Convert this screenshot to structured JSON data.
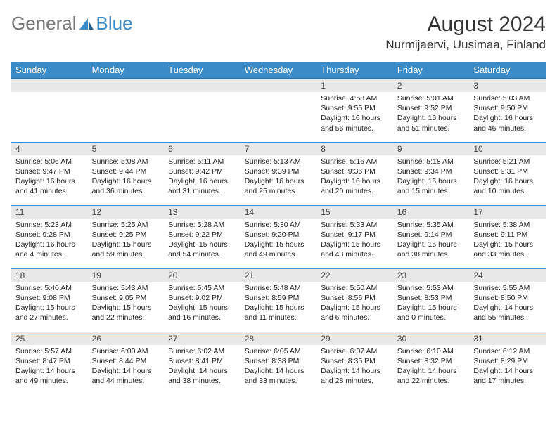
{
  "brand": {
    "part1": "General",
    "part2": "Blue"
  },
  "title": "August 2024",
  "location": "Nurmijaervi, Uusimaa, Finland",
  "colors": {
    "header_bg": "#3b8bc9",
    "header_border": "#2f6fa0",
    "daynum_bg": "#e8e8e8",
    "cell_border": "#3b8bc9",
    "text": "#222222",
    "background": "#ffffff"
  },
  "weekdays": [
    "Sunday",
    "Monday",
    "Tuesday",
    "Wednesday",
    "Thursday",
    "Friday",
    "Saturday"
  ],
  "weeks": [
    [
      {
        "empty": true
      },
      {
        "empty": true
      },
      {
        "empty": true
      },
      {
        "empty": true
      },
      {
        "day": "1",
        "sunrise": "4:58 AM",
        "sunset": "9:55 PM",
        "daylight": "16 hours and 56 minutes."
      },
      {
        "day": "2",
        "sunrise": "5:01 AM",
        "sunset": "9:52 PM",
        "daylight": "16 hours and 51 minutes."
      },
      {
        "day": "3",
        "sunrise": "5:03 AM",
        "sunset": "9:50 PM",
        "daylight": "16 hours and 46 minutes."
      }
    ],
    [
      {
        "day": "4",
        "sunrise": "5:06 AM",
        "sunset": "9:47 PM",
        "daylight": "16 hours and 41 minutes."
      },
      {
        "day": "5",
        "sunrise": "5:08 AM",
        "sunset": "9:44 PM",
        "daylight": "16 hours and 36 minutes."
      },
      {
        "day": "6",
        "sunrise": "5:11 AM",
        "sunset": "9:42 PM",
        "daylight": "16 hours and 31 minutes."
      },
      {
        "day": "7",
        "sunrise": "5:13 AM",
        "sunset": "9:39 PM",
        "daylight": "16 hours and 25 minutes."
      },
      {
        "day": "8",
        "sunrise": "5:16 AM",
        "sunset": "9:36 PM",
        "daylight": "16 hours and 20 minutes."
      },
      {
        "day": "9",
        "sunrise": "5:18 AM",
        "sunset": "9:34 PM",
        "daylight": "16 hours and 15 minutes."
      },
      {
        "day": "10",
        "sunrise": "5:21 AM",
        "sunset": "9:31 PM",
        "daylight": "16 hours and 10 minutes."
      }
    ],
    [
      {
        "day": "11",
        "sunrise": "5:23 AM",
        "sunset": "9:28 PM",
        "daylight": "16 hours and 4 minutes."
      },
      {
        "day": "12",
        "sunrise": "5:25 AM",
        "sunset": "9:25 PM",
        "daylight": "15 hours and 59 minutes."
      },
      {
        "day": "13",
        "sunrise": "5:28 AM",
        "sunset": "9:22 PM",
        "daylight": "15 hours and 54 minutes."
      },
      {
        "day": "14",
        "sunrise": "5:30 AM",
        "sunset": "9:20 PM",
        "daylight": "15 hours and 49 minutes."
      },
      {
        "day": "15",
        "sunrise": "5:33 AM",
        "sunset": "9:17 PM",
        "daylight": "15 hours and 43 minutes."
      },
      {
        "day": "16",
        "sunrise": "5:35 AM",
        "sunset": "9:14 PM",
        "daylight": "15 hours and 38 minutes."
      },
      {
        "day": "17",
        "sunrise": "5:38 AM",
        "sunset": "9:11 PM",
        "daylight": "15 hours and 33 minutes."
      }
    ],
    [
      {
        "day": "18",
        "sunrise": "5:40 AM",
        "sunset": "9:08 PM",
        "daylight": "15 hours and 27 minutes."
      },
      {
        "day": "19",
        "sunrise": "5:43 AM",
        "sunset": "9:05 PM",
        "daylight": "15 hours and 22 minutes."
      },
      {
        "day": "20",
        "sunrise": "5:45 AM",
        "sunset": "9:02 PM",
        "daylight": "15 hours and 16 minutes."
      },
      {
        "day": "21",
        "sunrise": "5:48 AM",
        "sunset": "8:59 PM",
        "daylight": "15 hours and 11 minutes."
      },
      {
        "day": "22",
        "sunrise": "5:50 AM",
        "sunset": "8:56 PM",
        "daylight": "15 hours and 6 minutes."
      },
      {
        "day": "23",
        "sunrise": "5:53 AM",
        "sunset": "8:53 PM",
        "daylight": "15 hours and 0 minutes."
      },
      {
        "day": "24",
        "sunrise": "5:55 AM",
        "sunset": "8:50 PM",
        "daylight": "14 hours and 55 minutes."
      }
    ],
    [
      {
        "day": "25",
        "sunrise": "5:57 AM",
        "sunset": "8:47 PM",
        "daylight": "14 hours and 49 minutes."
      },
      {
        "day": "26",
        "sunrise": "6:00 AM",
        "sunset": "8:44 PM",
        "daylight": "14 hours and 44 minutes."
      },
      {
        "day": "27",
        "sunrise": "6:02 AM",
        "sunset": "8:41 PM",
        "daylight": "14 hours and 38 minutes."
      },
      {
        "day": "28",
        "sunrise": "6:05 AM",
        "sunset": "8:38 PM",
        "daylight": "14 hours and 33 minutes."
      },
      {
        "day": "29",
        "sunrise": "6:07 AM",
        "sunset": "8:35 PM",
        "daylight": "14 hours and 28 minutes."
      },
      {
        "day": "30",
        "sunrise": "6:10 AM",
        "sunset": "8:32 PM",
        "daylight": "14 hours and 22 minutes."
      },
      {
        "day": "31",
        "sunrise": "6:12 AM",
        "sunset": "8:29 PM",
        "daylight": "14 hours and 17 minutes."
      }
    ]
  ],
  "labels": {
    "sunrise": "Sunrise: ",
    "sunset": "Sunset: ",
    "daylight": "Daylight: "
  }
}
